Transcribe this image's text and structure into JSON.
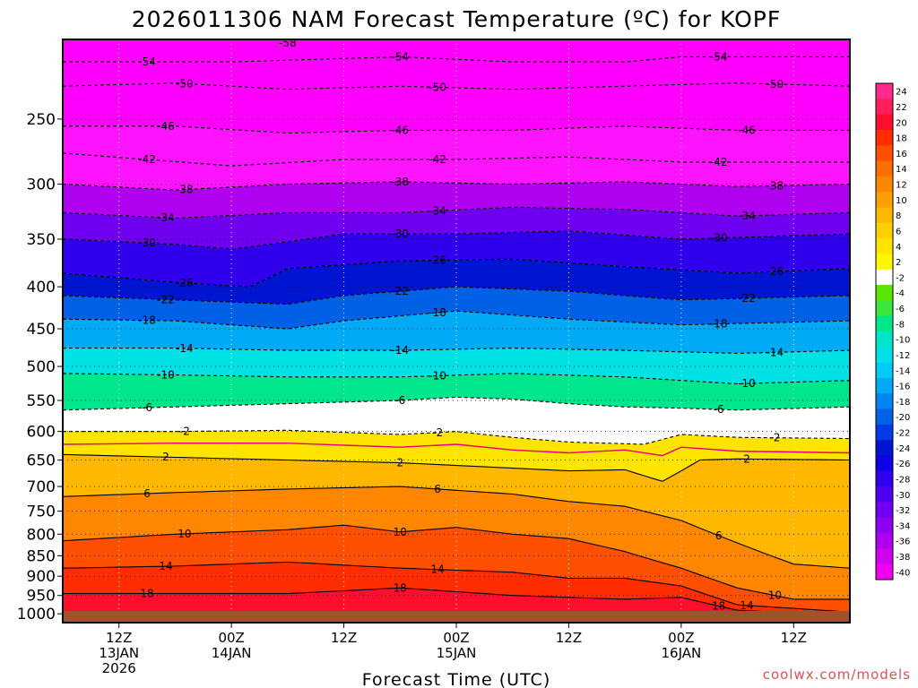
{
  "chart_data": {
    "type": "heatmap",
    "title": "2026011306 NAM Forecast Temperature (ºC) for KOPF",
    "xlabel": "Forecast Time (UTC)",
    "ylabel": "",
    "y_axis": {
      "scale": "log-pressure (inverted)",
      "range_hPa": [
        1025,
        200
      ],
      "ticks": [
        "250",
        "300",
        "350",
        "400",
        "450",
        "500",
        "550",
        "600",
        "650",
        "700",
        "750",
        "800",
        "850",
        "900",
        "950",
        "1000"
      ]
    },
    "x_axis": {
      "range_hours": [
        0,
        84
      ],
      "ticks": [
        {
          "hour": 6,
          "lines": [
            "12Z",
            "13JAN",
            "2026"
          ]
        },
        {
          "hour": 18,
          "lines": [
            "00Z",
            "14JAN"
          ]
        },
        {
          "hour": 30,
          "lines": [
            "12Z"
          ]
        },
        {
          "hour": 42,
          "lines": [
            "00Z",
            "15JAN"
          ]
        },
        {
          "hour": 54,
          "lines": [
            "12Z"
          ]
        },
        {
          "hour": 66,
          "lines": [
            "00Z",
            "16JAN"
          ]
        },
        {
          "hour": 78,
          "lines": [
            "12Z"
          ]
        }
      ]
    },
    "colorbar": {
      "levels": [
        "24",
        "22",
        "20",
        "18",
        "16",
        "14",
        "12",
        "10",
        "8",
        "6",
        "4",
        "2",
        "-2",
        "-4",
        "-6",
        "-8",
        "-10",
        "-12",
        "-14",
        "-16",
        "-18",
        "-20",
        "-22",
        "-24",
        "-26",
        "-28",
        "-30",
        "-32",
        "-34",
        "-36",
        "-38",
        "-40"
      ],
      "colors": [
        "#ff2a8c",
        "#ff1e5a",
        "#ff0f2d",
        "#ff2d00",
        "#ff4f00",
        "#ff6e00",
        "#ff8700",
        "#ff9e00",
        "#ffb700",
        "#ffcf00",
        "#ffe400",
        "#fff700",
        "#ffffff",
        "#5ae600",
        "#3ce63c",
        "#00e68c",
        "#00e6c8",
        "#00e1e6",
        "#00caf5",
        "#00aaf5",
        "#0085f0",
        "#0060e6",
        "#003ce6",
        "#0015d2",
        "#1000e6",
        "#3000ec",
        "#5000f0",
        "#7000f0",
        "#9000f0",
        "#b000f0",
        "#d000f0",
        "#f000f0"
      ]
    },
    "freezing_line_hPa": [
      [
        0,
        600
      ],
      [
        12,
        598
      ],
      [
        24,
        598
      ],
      [
        36,
        605
      ],
      [
        42,
        600
      ],
      [
        48,
        610
      ],
      [
        54,
        615
      ],
      [
        60,
        610
      ],
      [
        64,
        620
      ],
      [
        66,
        605
      ],
      [
        72,
        612
      ],
      [
        84,
        615
      ]
    ],
    "isotherms": [
      {
        "value": -54,
        "hPa_at_x": [
          [
            0,
            213
          ],
          [
            18,
            213
          ],
          [
            36,
            210
          ],
          [
            48,
            213
          ],
          [
            60,
            213
          ],
          [
            66,
            210
          ],
          [
            84,
            210
          ]
        ]
      },
      {
        "value": -50,
        "hPa_at_x": [
          [
            0,
            228
          ],
          [
            12,
            226
          ],
          [
            24,
            230
          ],
          [
            36,
            228
          ],
          [
            48,
            230
          ],
          [
            60,
            228
          ],
          [
            72,
            226
          ],
          [
            84,
            228
          ]
        ]
      },
      {
        "value": -46,
        "hPa_at_x": [
          [
            0,
            255
          ],
          [
            12,
            255
          ],
          [
            24,
            260
          ],
          [
            36,
            258
          ],
          [
            48,
            258
          ],
          [
            60,
            255
          ],
          [
            72,
            258
          ],
          [
            84,
            258
          ]
        ]
      },
      {
        "value": -42,
        "hPa_at_x": [
          [
            0,
            275
          ],
          [
            18,
            285
          ],
          [
            30,
            280
          ],
          [
            42,
            280
          ],
          [
            54,
            278
          ],
          [
            66,
            282
          ],
          [
            84,
            282
          ]
        ]
      },
      {
        "value": -38,
        "hPa_at_x": [
          [
            0,
            300
          ],
          [
            12,
            305
          ],
          [
            24,
            300
          ],
          [
            36,
            298
          ],
          [
            48,
            300
          ],
          [
            60,
            298
          ],
          [
            72,
            302
          ],
          [
            84,
            300
          ]
        ]
      },
      {
        "value": -34,
        "hPa_at_x": [
          [
            0,
            325
          ],
          [
            12,
            330
          ],
          [
            24,
            325
          ],
          [
            36,
            325
          ],
          [
            48,
            320
          ],
          [
            60,
            322
          ],
          [
            72,
            328
          ],
          [
            84,
            325
          ]
        ]
      },
      {
        "value": -30,
        "hPa_at_x": [
          [
            0,
            350
          ],
          [
            12,
            355
          ],
          [
            18,
            360
          ],
          [
            30,
            345
          ],
          [
            42,
            345
          ],
          [
            54,
            342
          ],
          [
            66,
            350
          ],
          [
            84,
            345
          ]
        ]
      },
      {
        "value": -26,
        "hPa_at_x": [
          [
            0,
            385
          ],
          [
            12,
            395
          ],
          [
            20,
            400
          ],
          [
            24,
            380
          ],
          [
            36,
            372
          ],
          [
            48,
            370
          ],
          [
            60,
            378
          ],
          [
            72,
            385
          ],
          [
            84,
            380
          ]
        ]
      },
      {
        "value": -22,
        "hPa_at_x": [
          [
            0,
            410
          ],
          [
            12,
            415
          ],
          [
            24,
            420
          ],
          [
            30,
            410
          ],
          [
            42,
            400
          ],
          [
            54,
            405
          ],
          [
            66,
            415
          ],
          [
            84,
            410
          ]
        ]
      },
      {
        "value": -18,
        "hPa_at_x": [
          [
            0,
            438
          ],
          [
            12,
            440
          ],
          [
            24,
            450
          ],
          [
            30,
            440
          ],
          [
            42,
            428
          ],
          [
            54,
            438
          ],
          [
            66,
            445
          ],
          [
            84,
            440
          ]
        ]
      },
      {
        "value": -14,
        "hPa_at_x": [
          [
            0,
            475
          ],
          [
            12,
            475
          ],
          [
            24,
            478
          ],
          [
            36,
            478
          ],
          [
            48,
            475
          ],
          [
            60,
            478
          ],
          [
            72,
            482
          ],
          [
            84,
            478
          ]
        ]
      },
      {
        "value": -10,
        "hPa_at_x": [
          [
            0,
            510
          ],
          [
            12,
            512
          ],
          [
            24,
            515
          ],
          [
            36,
            515
          ],
          [
            48,
            510
          ],
          [
            60,
            515
          ],
          [
            72,
            525
          ],
          [
            84,
            520
          ]
        ]
      },
      {
        "value": -6,
        "hPa_at_x": [
          [
            0,
            565
          ],
          [
            12,
            560
          ],
          [
            24,
            555
          ],
          [
            36,
            550
          ],
          [
            42,
            545
          ],
          [
            48,
            548
          ],
          [
            54,
            555
          ],
          [
            60,
            560
          ],
          [
            66,
            562
          ],
          [
            72,
            565
          ],
          [
            84,
            560
          ]
        ]
      },
      {
        "value": -2,
        "hPa_at_x": [
          [
            0,
            600
          ],
          [
            12,
            600
          ],
          [
            24,
            598
          ],
          [
            36,
            605
          ],
          [
            42,
            600
          ],
          [
            48,
            610
          ],
          [
            54,
            618
          ],
          [
            62,
            622
          ],
          [
            66,
            605
          ],
          [
            72,
            610
          ],
          [
            84,
            612
          ]
        ]
      },
      {
        "value": 2,
        "hPa_at_x": [
          [
            0,
            640
          ],
          [
            12,
            645
          ],
          [
            24,
            650
          ],
          [
            36,
            655
          ],
          [
            42,
            660
          ],
          [
            48,
            665
          ],
          [
            54,
            670
          ],
          [
            60,
            668
          ],
          [
            64,
            690
          ],
          [
            68,
            650
          ],
          [
            72,
            648
          ],
          [
            84,
            650
          ]
        ]
      },
      {
        "value": 6,
        "hPa_at_x": [
          [
            0,
            720
          ],
          [
            12,
            712
          ],
          [
            24,
            705
          ],
          [
            36,
            700
          ],
          [
            48,
            715
          ],
          [
            54,
            730
          ],
          [
            60,
            740
          ],
          [
            66,
            770
          ],
          [
            72,
            820
          ],
          [
            78,
            870
          ],
          [
            84,
            880
          ]
        ]
      },
      {
        "value": 10,
        "hPa_at_x": [
          [
            0,
            815
          ],
          [
            12,
            800
          ],
          [
            24,
            790
          ],
          [
            30,
            780
          ],
          [
            36,
            795
          ],
          [
            42,
            785
          ],
          [
            48,
            800
          ],
          [
            54,
            810
          ],
          [
            60,
            840
          ],
          [
            66,
            880
          ],
          [
            72,
            930
          ],
          [
            78,
            960
          ],
          [
            84,
            960
          ]
        ]
      },
      {
        "value": 14,
        "hPa_at_x": [
          [
            0,
            880
          ],
          [
            12,
            875
          ],
          [
            24,
            865
          ],
          [
            36,
            880
          ],
          [
            48,
            890
          ],
          [
            54,
            905
          ],
          [
            60,
            905
          ],
          [
            66,
            925
          ],
          [
            72,
            975
          ],
          [
            84,
            995
          ]
        ]
      },
      {
        "value": 18,
        "hPa_at_x": [
          [
            0,
            945
          ],
          [
            12,
            945
          ],
          [
            24,
            945
          ],
          [
            36,
            930
          ],
          [
            48,
            950
          ],
          [
            60,
            960
          ],
          [
            66,
            955
          ],
          [
            72,
            990
          ],
          [
            84,
            1005
          ]
        ]
      }
    ],
    "annotations": [
      "-58",
      "-54",
      "-50",
      "-46",
      "-42",
      "-38",
      "-34",
      "-30",
      "-26",
      "-22",
      "-18",
      "-14",
      "-10",
      "-6",
      "-2",
      "2",
      "6",
      "10",
      "14",
      "18"
    ]
  },
  "credit": "coolwx.com/models",
  "colors": {
    "ground": "#a0522d",
    "freezing_line": "#e6007e",
    "credit_text": "#e05050"
  }
}
